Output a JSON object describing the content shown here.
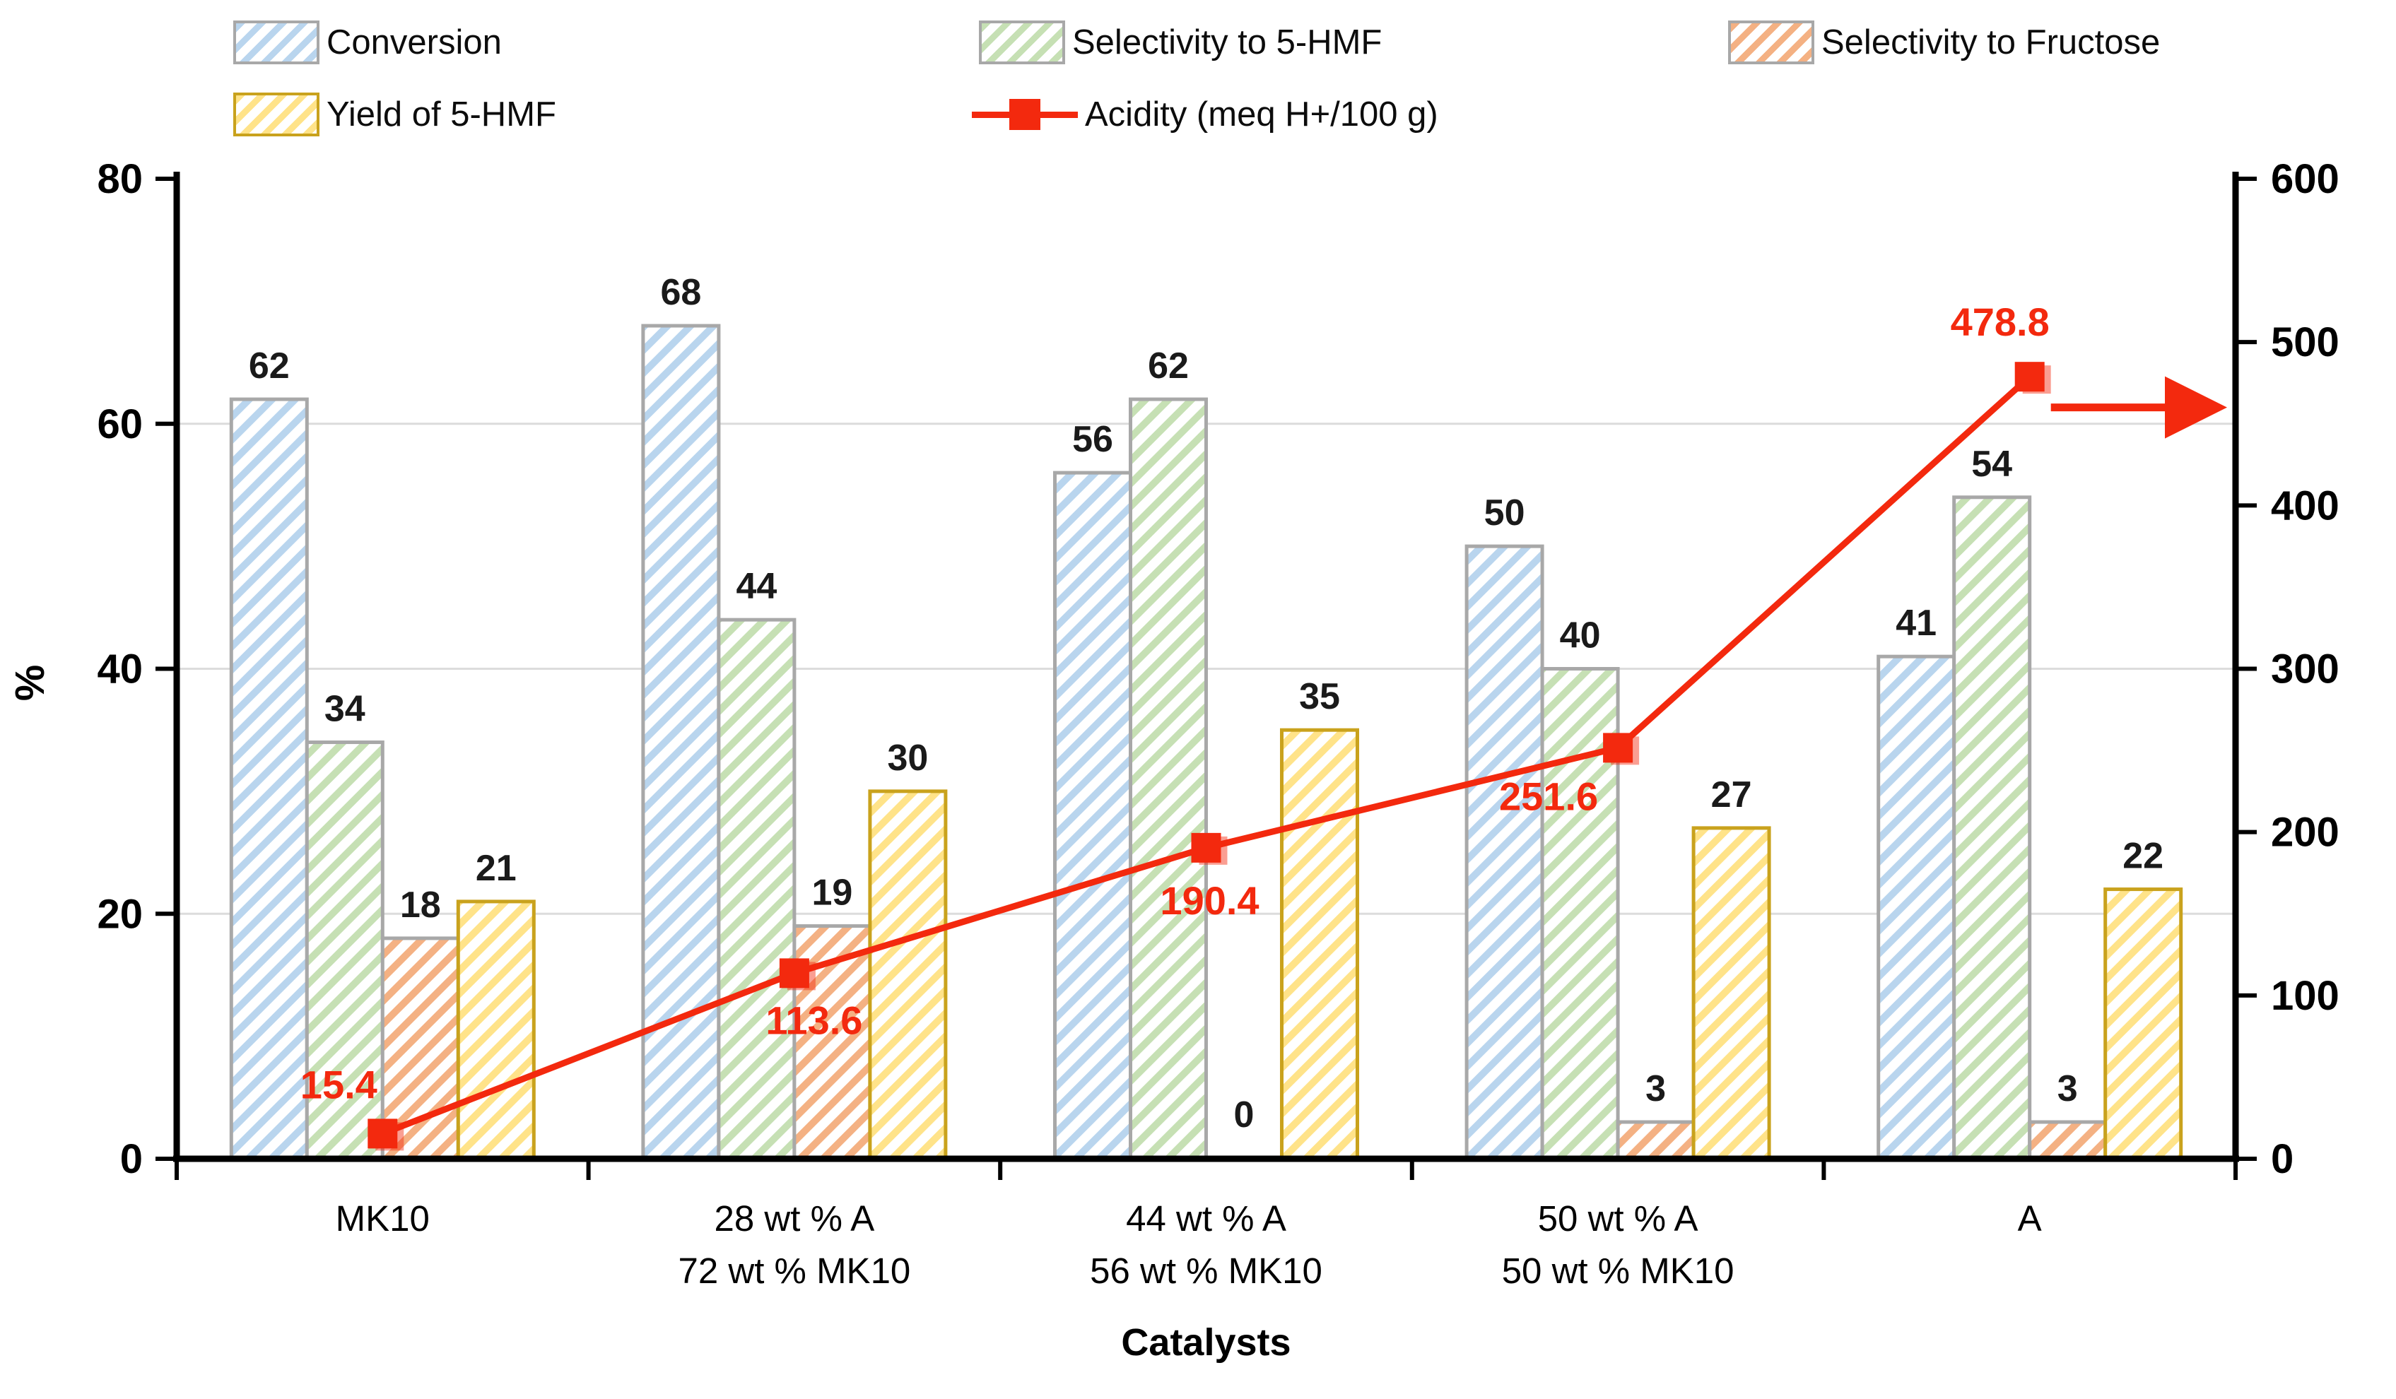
{
  "chart_data": {
    "type": "bar",
    "subtype": "grouped-bar-with-line-overlay",
    "title": "",
    "xlabel": "Catalysts",
    "categories": [
      [
        "MK10"
      ],
      [
        "28 wt % A",
        "72 wt % MK10"
      ],
      [
        "44 wt % A",
        "56 wt % MK10"
      ],
      [
        "50 wt % A",
        "50 wt % MK10"
      ],
      [
        "A"
      ]
    ],
    "left_axis": {
      "label": "%",
      "min": 0,
      "max": 80,
      "ticks": [
        0,
        20,
        40,
        60,
        80
      ]
    },
    "right_axis": {
      "label": "",
      "min": 0,
      "max": 600,
      "ticks": [
        0,
        100,
        200,
        300,
        400,
        500,
        600
      ]
    },
    "grid": "horizontal gridlines at left-axis 20, 40, 60",
    "legend_position": "top",
    "right_axis_arrow_value": 460,
    "series": [
      {
        "name": "Conversion",
        "type": "bar",
        "axis": "left",
        "color": "#b9d5ee",
        "border": "#a8a8a8",
        "values": [
          62,
          68,
          56,
          50,
          41
        ]
      },
      {
        "name": "Selectivity to 5-HMF",
        "type": "bar",
        "axis": "left",
        "color": "#c6e0b4",
        "border": "#a8a8a8",
        "values": [
          34,
          44,
          62,
          40,
          54
        ]
      },
      {
        "name": "Selectivity to Fructose",
        "type": "bar",
        "axis": "left",
        "color": "#f4b183",
        "border": "#a8a8a8",
        "values": [
          18,
          19,
          0,
          3,
          3
        ]
      },
      {
        "name": "Yield of 5-HMF",
        "type": "bar",
        "axis": "left",
        "color": "#ffe389",
        "border": "#c9a21d",
        "values": [
          21,
          30,
          35,
          27,
          22
        ]
      },
      {
        "name": "Acidity (meq H+/100 g)",
        "type": "line",
        "axis": "right",
        "color": "#f3290e",
        "values": [
          15.4,
          113.6,
          190.4,
          251.6,
          478.8
        ]
      }
    ]
  },
  "colors": {
    "gridline": "#dcdcdc",
    "axis": "#000000",
    "bar_value_label": "#1a1a1a",
    "acidity_label": "#f3290e"
  }
}
